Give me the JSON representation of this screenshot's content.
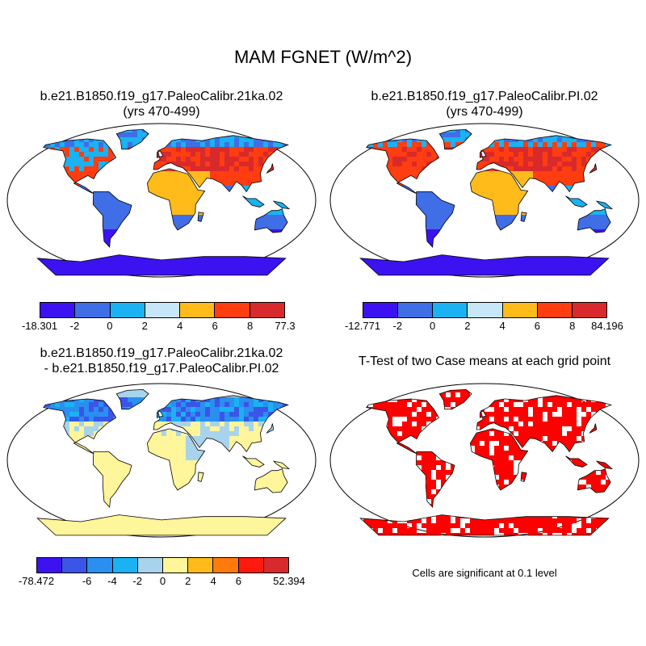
{
  "title": "MAM FGNET (W/m^2)",
  "panels": [
    {
      "id": "case1",
      "title_lines": [
        "b.e21.B1850.f19_g17.PaleoCalibr.21ka.02",
        "(yrs 470-499)"
      ],
      "colorbar": {
        "colors": [
          "#3d12f0",
          "#3f6ee6",
          "#1ab2f2",
          "#c7e6f7",
          "#ffbb1a",
          "#ff3d11",
          "#d82a2c"
        ],
        "labels": [
          "-18.301",
          "-2",
          "0",
          "2",
          "4",
          "6",
          "8",
          "77.3"
        ]
      }
    },
    {
      "id": "case2",
      "title_lines": [
        "b.e21.B1850.f19_g17.PaleoCalibr.PI.02",
        "(yrs 470-499)"
      ],
      "colorbar": {
        "colors": [
          "#3d12f0",
          "#3f6ee6",
          "#1ab2f2",
          "#c7e6f7",
          "#ffbb1a",
          "#ff3d11",
          "#d82a2c"
        ],
        "labels": [
          "-12.771",
          "-2",
          "0",
          "2",
          "4",
          "6",
          "8",
          "84.196"
        ]
      }
    },
    {
      "id": "diff",
      "title_lines": [
        "b.e21.B1850.f19_g17.PaleoCalibr.21ka.02",
        "- b.e21.B1850.f19_g17.PaleoCalibr.PI.02"
      ],
      "colorbar": {
        "colors": [
          "#3d12f0",
          "#3a55e8",
          "#2a8ff0",
          "#1ab2f2",
          "#a8d3ec",
          "#fff59a",
          "#ffbb1a",
          "#ff7a0d",
          "#ff1a0d",
          "#d82a2c"
        ],
        "labels": [
          "-78.472",
          "",
          "-6",
          "-4",
          "-2",
          "0",
          "2",
          "4",
          "6",
          "",
          "52.394"
        ]
      }
    },
    {
      "id": "ttest",
      "title_lines": [
        "T-Test of two Case means at each grid point"
      ],
      "note": "Cells are significant at 0.1 level"
    }
  ],
  "map_colors": {
    "ocean": "#ffffff",
    "coast": "#000000",
    "signif": "#ff0000"
  }
}
